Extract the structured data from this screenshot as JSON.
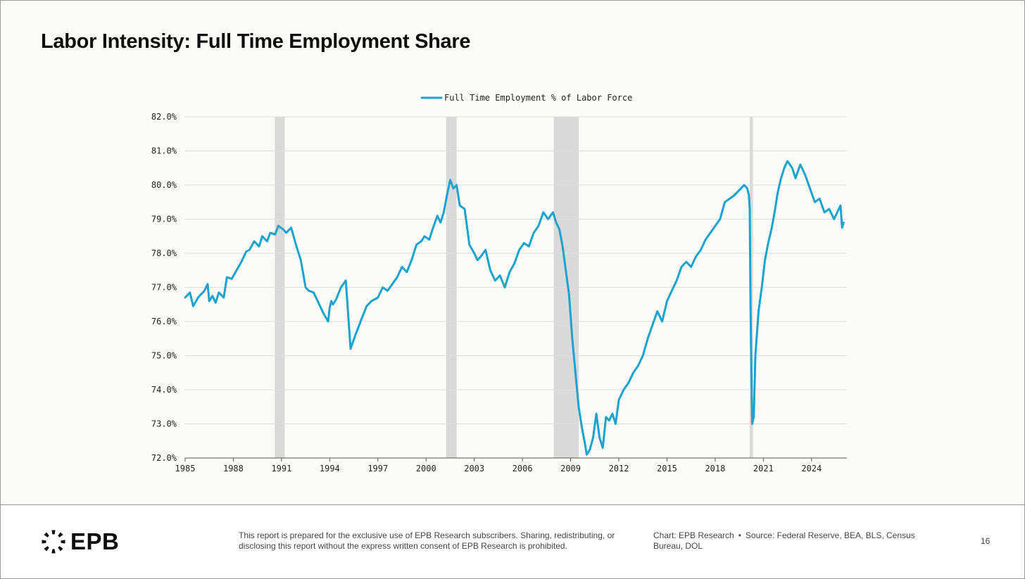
{
  "slide": {
    "title": "Labor Intensity: Full Time Employment Share",
    "page_number": "16"
  },
  "footer": {
    "logo_text": "EPB",
    "disclaimer": "This report is prepared for the exclusive use of EPB Research subscribers. Sharing, redistributing, or disclosing this report without the express written consent of EPB Research is prohibited.",
    "chart_credit": "Chart: EPB Research",
    "separator": "•",
    "source": "Source: Federal Reserve, BEA, BLS, Census Bureau, DOL"
  },
  "colors": {
    "line": "#1aa3cc",
    "recession": "#d9d9d9",
    "grid": "#dedede",
    "text": "#222222"
  },
  "chart_data": {
    "type": "line",
    "title": "",
    "xlabel": "",
    "ylabel": "",
    "legend": "top-center",
    "grid": true,
    "xlim": [
      1985,
      2026.2
    ],
    "ylim": [
      72.0,
      82.0
    ],
    "x_ticks": [
      1985,
      1988,
      1991,
      1994,
      1997,
      2000,
      2003,
      2006,
      2009,
      2012,
      2015,
      2018,
      2021,
      2024
    ],
    "y_ticks": [
      72.0,
      73.0,
      74.0,
      75.0,
      76.0,
      77.0,
      78.0,
      79.0,
      80.0,
      81.0,
      82.0
    ],
    "y_tick_labels": [
      "72.0%",
      "73.0%",
      "74.0%",
      "75.0%",
      "76.0%",
      "77.0%",
      "78.0%",
      "79.0%",
      "80.0%",
      "81.0%",
      "82.0%"
    ],
    "recessions": [
      [
        1990.58,
        1991.2
      ],
      [
        2001.25,
        2001.9
      ],
      [
        2007.95,
        2009.5
      ],
      [
        2020.15,
        2020.35
      ]
    ],
    "series": [
      {
        "name": "Full Time Employment % of Labor Force",
        "x": [
          1985.0,
          1985.3,
          1985.5,
          1985.8,
          1986.2,
          1986.4,
          1986.5,
          1986.7,
          1986.9,
          1987.1,
          1987.4,
          1987.6,
          1987.9,
          1988.2,
          1988.5,
          1988.8,
          1989.0,
          1989.3,
          1989.6,
          1989.8,
          1990.1,
          1990.3,
          1990.6,
          1990.8,
          1991.1,
          1991.3,
          1991.6,
          1991.9,
          1992.2,
          1992.5,
          1992.7,
          1993.0,
          1993.3,
          1993.6,
          1993.9,
          1994.0,
          1994.1,
          1994.2,
          1994.4,
          1994.7,
          1995.0,
          1995.3,
          1995.6,
          1996.0,
          1996.3,
          1996.6,
          1997.0,
          1997.3,
          1997.6,
          1997.9,
          1998.2,
          1998.5,
          1998.8,
          1999.1,
          1999.4,
          1999.7,
          1999.9,
          2000.2,
          2000.4,
          2000.7,
          2000.9,
          2001.1,
          2001.3,
          2001.5,
          2001.7,
          2001.9,
          2002.1,
          2002.4,
          2002.7,
          2003.0,
          2003.2,
          2003.4,
          2003.7,
          2004.0,
          2004.3,
          2004.6,
          2004.9,
          2005.2,
          2005.5,
          2005.8,
          2006.1,
          2006.4,
          2006.7,
          2007.0,
          2007.3,
          2007.6,
          2007.9,
          2008.1,
          2008.3,
          2008.5,
          2008.7,
          2008.9,
          2009.1,
          2009.3,
          2009.5,
          2009.7,
          2009.9,
          2010.0,
          2010.2,
          2010.4,
          2010.6,
          2010.8,
          2011.0,
          2011.2,
          2011.4,
          2011.6,
          2011.8,
          2012.0,
          2012.3,
          2012.6,
          2012.9,
          2013.2,
          2013.5,
          2013.8,
          2014.1,
          2014.4,
          2014.7,
          2015.0,
          2015.3,
          2015.6,
          2015.9,
          2016.2,
          2016.5,
          2016.8,
          2017.1,
          2017.4,
          2017.7,
          2018.0,
          2018.3,
          2018.6,
          2018.9,
          2019.2,
          2019.5,
          2019.8,
          2020.0,
          2020.1,
          2020.15,
          2020.2,
          2020.3,
          2020.4,
          2020.5,
          2020.7,
          2020.9,
          2021.1,
          2021.3,
          2021.5,
          2021.7,
          2021.9,
          2022.1,
          2022.3,
          2022.5,
          2022.8,
          2023.0,
          2023.3,
          2023.6,
          2023.9,
          2024.2,
          2024.5,
          2024.8,
          2025.1,
          2025.4,
          2025.6,
          2025.8,
          2025.9,
          2026.0
        ],
        "values": [
          76.7,
          76.85,
          76.45,
          76.7,
          76.9,
          77.1,
          76.6,
          76.75,
          76.55,
          76.85,
          76.7,
          77.3,
          77.25,
          77.5,
          77.75,
          78.05,
          78.1,
          78.35,
          78.2,
          78.5,
          78.35,
          78.6,
          78.55,
          78.8,
          78.7,
          78.6,
          78.75,
          78.25,
          77.8,
          77.0,
          76.9,
          76.85,
          76.55,
          76.25,
          76.0,
          76.4,
          76.6,
          76.5,
          76.65,
          77.0,
          77.2,
          75.2,
          75.6,
          76.1,
          76.45,
          76.6,
          76.7,
          77.0,
          76.9,
          77.1,
          77.3,
          77.6,
          77.45,
          77.8,
          78.25,
          78.35,
          78.5,
          78.4,
          78.7,
          79.1,
          78.9,
          79.2,
          79.7,
          80.15,
          79.9,
          80.0,
          79.4,
          79.3,
          78.25,
          78.0,
          77.8,
          77.9,
          78.1,
          77.5,
          77.2,
          77.35,
          77.0,
          77.45,
          77.7,
          78.1,
          78.3,
          78.2,
          78.6,
          78.8,
          79.2,
          79.0,
          79.2,
          78.9,
          78.7,
          78.2,
          77.5,
          76.8,
          75.5,
          74.5,
          73.5,
          72.9,
          72.4,
          72.1,
          72.25,
          72.6,
          73.3,
          72.6,
          72.3,
          73.2,
          73.1,
          73.3,
          73.0,
          73.7,
          74.0,
          74.2,
          74.5,
          74.7,
          75.0,
          75.5,
          75.9,
          76.3,
          76.0,
          76.6,
          76.9,
          77.2,
          77.6,
          77.75,
          77.6,
          77.9,
          78.1,
          78.4,
          78.6,
          78.8,
          79.0,
          79.5,
          79.6,
          79.7,
          79.85,
          80.0,
          79.9,
          79.7,
          79.3,
          76.5,
          73.0,
          73.2,
          75.0,
          76.3,
          77.0,
          77.8,
          78.3,
          78.7,
          79.2,
          79.8,
          80.2,
          80.5,
          80.7,
          80.5,
          80.2,
          80.6,
          80.3,
          79.9,
          79.5,
          79.6,
          79.2,
          79.3,
          79.0,
          79.2,
          79.4,
          78.75,
          78.9
        ]
      }
    ]
  }
}
